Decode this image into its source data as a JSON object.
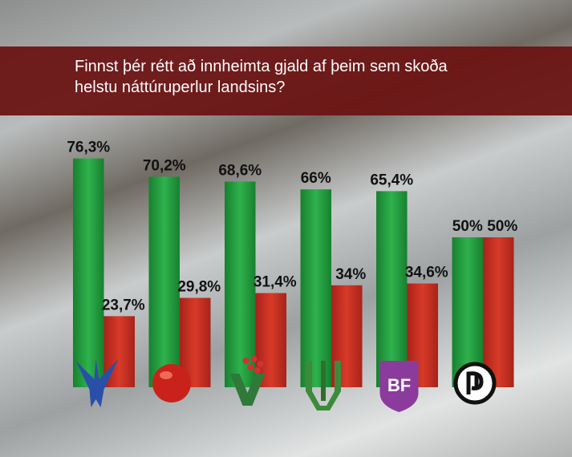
{
  "chart_data": {
    "type": "bar",
    "title": "Finnst þér rétt að innheimta gjald af þeim sem skoða helstu náttúruperlur landsins?",
    "categories": [
      null,
      null,
      null,
      null,
      null,
      null
    ],
    "series": [
      {
        "color": "#1f9a3c",
        "values": [
          76.3,
          70.2,
          68.6,
          66,
          65.4,
          50
        ],
        "value_labels": [
          "76,3%",
          "70,2%",
          "68,6%",
          "66%",
          "65,4%",
          "50%"
        ]
      },
      {
        "color": "#c9301f",
        "values": [
          23.7,
          29.8,
          31.4,
          34,
          34.6,
          50
        ],
        "value_labels": [
          "23,7%",
          "29,8%",
          "31,4%",
          "34%",
          "34,6%",
          "50%"
        ]
      }
    ]
  }
}
